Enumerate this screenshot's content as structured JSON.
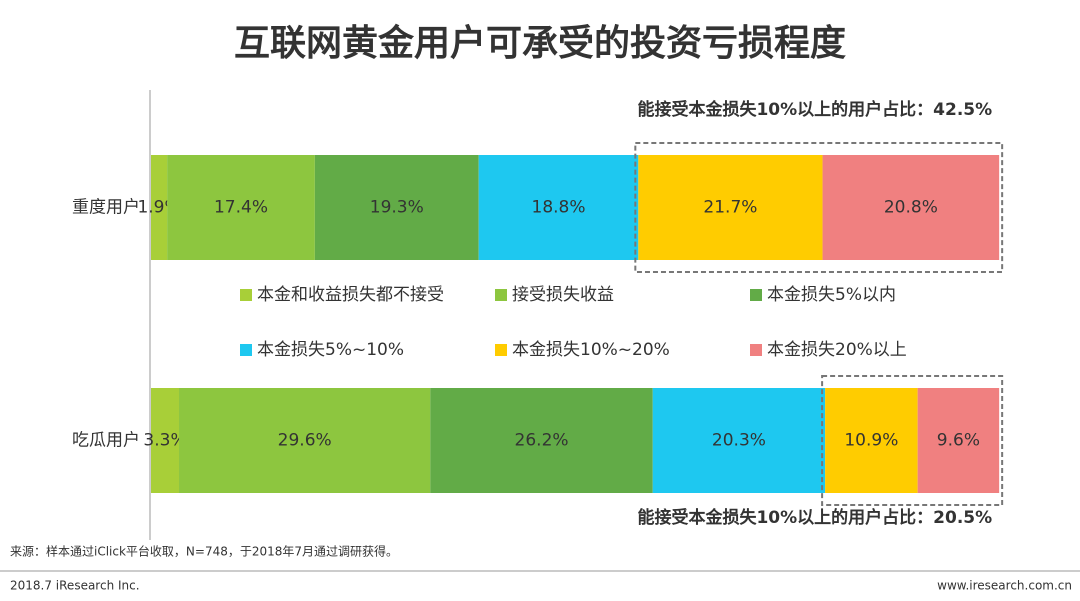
{
  "chart_data": {
    "type": "stacked-bar-horizontal",
    "title": "互联网黄金用户可承受的投资亏损程度",
    "categories": [
      "重度用户",
      "吃瓜用户"
    ],
    "xlim": [
      0,
      100
    ],
    "series": [
      {
        "name": "本金和收益损失都不接受",
        "color": "#a8cf38",
        "values": [
          1.9,
          3.3
        ],
        "value_labels": [
          "1.9%",
          "3.3%"
        ]
      },
      {
        "name": "接受损失收益",
        "color": "#8dc63f",
        "values": [
          17.4,
          29.6
        ],
        "value_labels": [
          "17.4%",
          "29.6%"
        ]
      },
      {
        "name": "本金损失5%以内",
        "color": "#62ab47",
        "values": [
          19.3,
          26.2
        ],
        "value_labels": [
          "19.3%",
          "26.2%"
        ]
      },
      {
        "name": "本金损失5%~10%",
        "color": "#1ec8f0",
        "values": [
          18.8,
          20.3
        ],
        "value_labels": [
          "18.8%",
          "20.3%"
        ]
      },
      {
        "name": "本金损失10%~20%",
        "color": "#ffcc00",
        "values": [
          21.7,
          10.9
        ],
        "value_labels": [
          "21.7%",
          "10.9%"
        ]
      },
      {
        "name": "本金损失20%以上",
        "color": "#f08080",
        "values": [
          20.8,
          9.6
        ],
        "value_labels": [
          "20.8%",
          "9.6%"
        ]
      }
    ],
    "annotations": [
      "能接受本金损失10%以上的用户占比：42.5%",
      "能接受本金损失10%以上的用户占比：20.5%"
    ],
    "source": "来源：样本通过iClick平台收取，N=748，于2018年7月通过调研获得。"
  },
  "footer": {
    "left": "2018.7 iResearch Inc.",
    "right": "www.iresearch.com.cn"
  }
}
